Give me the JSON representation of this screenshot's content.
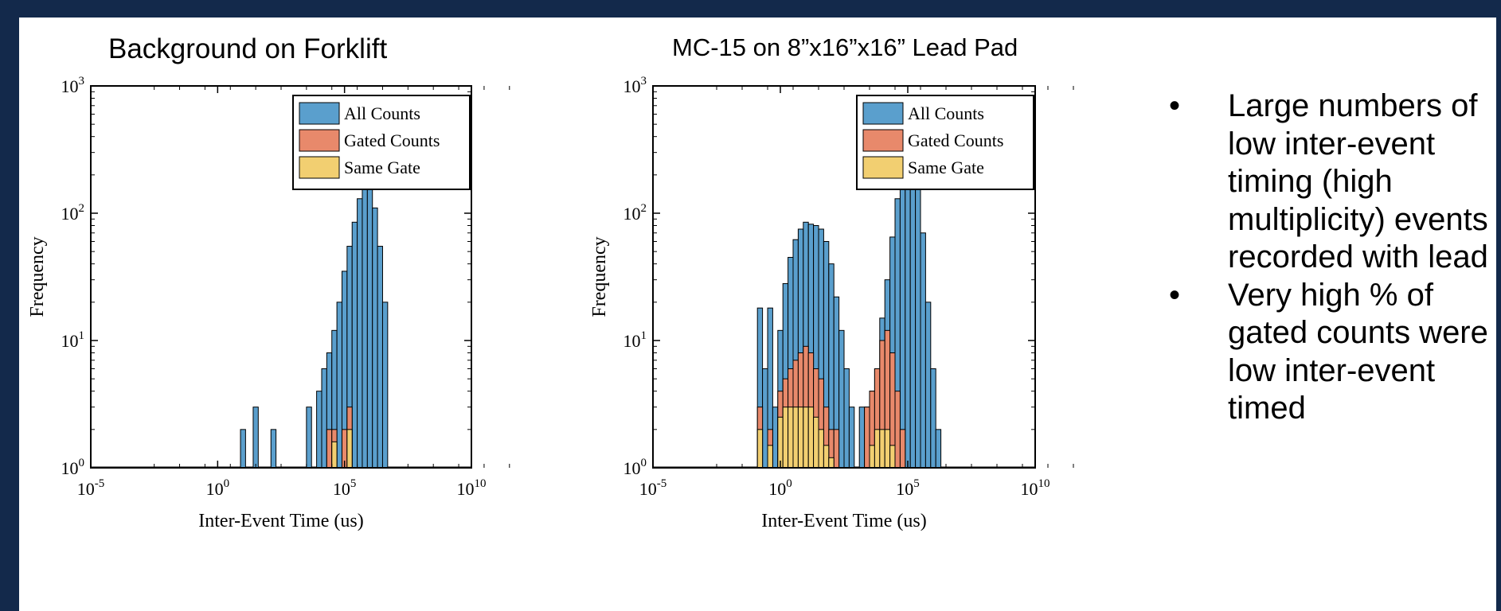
{
  "slide": {
    "subtitle_left": "Background on Forklift",
    "subtitle_right": "MC-15 on 8”x16”x16” Lead Pad",
    "bullets": [
      "Large numbers of low inter-event timing (high multiplicity) events recorded with lead",
      "Very high % of gated counts were low inter-event timed"
    ]
  },
  "colors": {
    "all_counts": "#5a9fcd",
    "gated_counts": "#e8896b",
    "same_gate": "#f2cf71",
    "frame": "#13294b"
  },
  "chart_data": [
    {
      "type": "bar",
      "title": "",
      "xlabel": "Inter-Event Time (us)",
      "ylabel": "Frequency",
      "xscale": "log",
      "yscale": "log",
      "xlim": [
        1e-05,
        10000000000.0
      ],
      "ylim": [
        1,
        1000
      ],
      "x_ticks": [
        "10^-5",
        "10^0",
        "10^5",
        "10^10"
      ],
      "y_ticks": [
        "10^0",
        "10^1",
        "10^2",
        "10^3"
      ],
      "legend": "top-right",
      "series": [
        {
          "name": "All Counts",
          "bins": [
            [
              1.0,
              2
            ],
            [
              1.5,
              3
            ],
            [
              2.2,
              2
            ],
            [
              3.6,
              3
            ],
            [
              4.0,
              4
            ],
            [
              4.2,
              6
            ],
            [
              4.4,
              8
            ],
            [
              4.6,
              12
            ],
            [
              4.8,
              20
            ],
            [
              5.0,
              35
            ],
            [
              5.2,
              55
            ],
            [
              5.4,
              85
            ],
            [
              5.6,
              130
            ],
            [
              5.8,
              175
            ],
            [
              6.0,
              160
            ],
            [
              6.2,
              110
            ],
            [
              6.4,
              55
            ],
            [
              6.6,
              20
            ]
          ]
        },
        {
          "name": "Gated Counts",
          "bins": [
            [
              4.4,
              2
            ],
            [
              4.6,
              2
            ],
            [
              5.0,
              2
            ],
            [
              5.2,
              3
            ]
          ]
        },
        {
          "name": "Same Gate",
          "bins": [
            [
              4.6,
              1.6
            ],
            [
              5.2,
              2
            ]
          ]
        }
      ]
    },
    {
      "type": "bar",
      "title": "",
      "xlabel": "Inter-Event Time (us)",
      "ylabel": "Frequency",
      "xscale": "log",
      "yscale": "log",
      "xlim": [
        1e-05,
        10000000000.0
      ],
      "ylim": [
        1,
        1000
      ],
      "x_ticks": [
        "10^-5",
        "10^0",
        "10^5",
        "10^10"
      ],
      "y_ticks": [
        "10^0",
        "10^1",
        "10^2",
        "10^3"
      ],
      "legend": "top-right",
      "series": [
        {
          "name": "All Counts",
          "bins": [
            [
              -0.8,
              18
            ],
            [
              -0.6,
              6
            ],
            [
              -0.4,
              18
            ],
            [
              -0.2,
              3
            ],
            [
              0.0,
              12
            ],
            [
              0.2,
              28
            ],
            [
              0.4,
              45
            ],
            [
              0.6,
              62
            ],
            [
              0.8,
              75
            ],
            [
              1.0,
              85
            ],
            [
              1.2,
              82
            ],
            [
              1.4,
              80
            ],
            [
              1.6,
              75
            ],
            [
              1.8,
              60
            ],
            [
              2.0,
              40
            ],
            [
              2.2,
              22
            ],
            [
              2.4,
              12
            ],
            [
              2.6,
              6
            ],
            [
              2.8,
              3
            ],
            [
              3.2,
              3
            ],
            [
              3.4,
              3
            ],
            [
              3.6,
              4
            ],
            [
              3.8,
              6
            ],
            [
              4.0,
              15
            ],
            [
              4.2,
              30
            ],
            [
              4.4,
              65
            ],
            [
              4.6,
              130
            ],
            [
              4.8,
              220
            ],
            [
              5.0,
              300
            ],
            [
              5.2,
              270
            ],
            [
              5.4,
              180
            ],
            [
              5.6,
              70
            ],
            [
              5.8,
              20
            ],
            [
              6.0,
              6
            ],
            [
              6.2,
              2
            ]
          ]
        },
        {
          "name": "Gated Counts",
          "bins": [
            [
              -0.8,
              3
            ],
            [
              -0.4,
              2
            ],
            [
              0.0,
              4
            ],
            [
              0.2,
              5
            ],
            [
              0.4,
              6
            ],
            [
              0.6,
              7
            ],
            [
              0.8,
              8
            ],
            [
              1.0,
              9
            ],
            [
              1.2,
              8
            ],
            [
              1.4,
              6
            ],
            [
              1.6,
              5
            ],
            [
              1.8,
              3
            ],
            [
              2.0,
              2
            ],
            [
              2.2,
              2
            ],
            [
              3.4,
              3
            ],
            [
              3.6,
              4
            ],
            [
              3.8,
              6
            ],
            [
              4.0,
              10
            ],
            [
              4.2,
              12
            ],
            [
              4.4,
              8
            ],
            [
              4.6,
              4
            ],
            [
              4.8,
              2
            ]
          ]
        },
        {
          "name": "Same Gate",
          "bins": [
            [
              -0.8,
              2
            ],
            [
              -0.4,
              1.5
            ],
            [
              0.0,
              2.5
            ],
            [
              0.2,
              3
            ],
            [
              0.4,
              3
            ],
            [
              0.6,
              3
            ],
            [
              0.8,
              3
            ],
            [
              1.0,
              3
            ],
            [
              1.2,
              3
            ],
            [
              1.4,
              2.5
            ],
            [
              1.6,
              2
            ],
            [
              1.8,
              1.5
            ],
            [
              2.0,
              1.2
            ],
            [
              3.6,
              1.5
            ],
            [
              3.8,
              2
            ],
            [
              4.0,
              2
            ],
            [
              4.2,
              2
            ],
            [
              4.4,
              1.5
            ]
          ]
        }
      ]
    }
  ]
}
